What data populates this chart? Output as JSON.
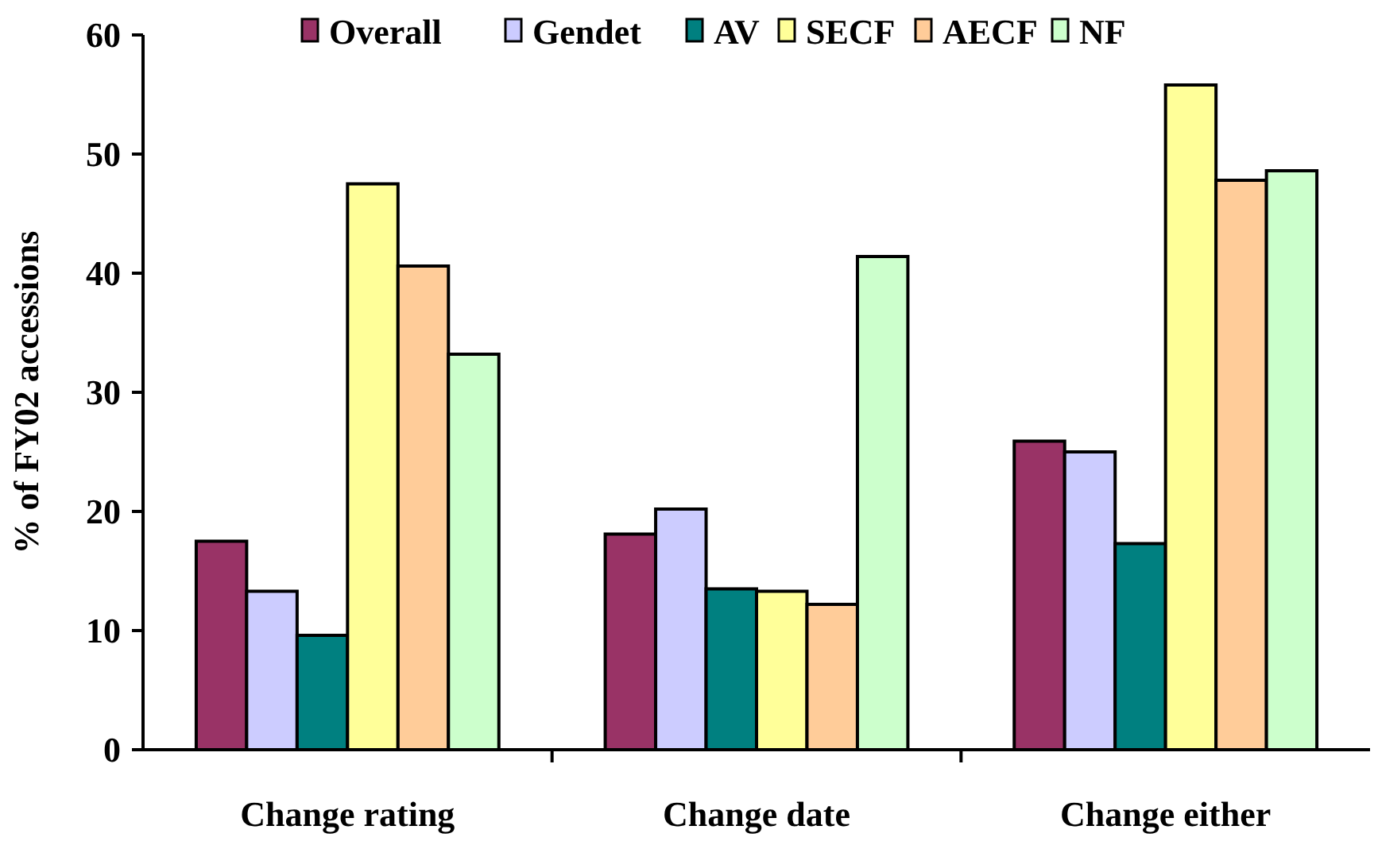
{
  "chart_data": {
    "type": "bar",
    "ylabel": "% of FY02 accessions",
    "categories": [
      "Change rating",
      "Change date",
      "Change either"
    ],
    "series": [
      {
        "name": "Overall",
        "color": "#993366",
        "values": [
          17.5,
          18.1,
          25.9
        ]
      },
      {
        "name": "Gendet",
        "color": "#ccccff",
        "values": [
          13.3,
          20.2,
          25.0
        ]
      },
      {
        "name": "AV",
        "color": "#008080",
        "values": [
          9.6,
          13.5,
          17.3
        ]
      },
      {
        "name": "SECF",
        "color": "#ffff99",
        "values": [
          47.5,
          13.3,
          55.8
        ]
      },
      {
        "name": "AECF",
        "color": "#ffcc99",
        "values": [
          40.6,
          12.2,
          47.8
        ]
      },
      {
        "name": "NF",
        "color": "#ccffcc",
        "values": [
          33.2,
          41.4,
          48.6
        ]
      }
    ],
    "ylim": [
      0,
      60
    ],
    "yticks": [
      0,
      10,
      20,
      30,
      40,
      50,
      60
    ],
    "grid": false,
    "legend": "top"
  }
}
